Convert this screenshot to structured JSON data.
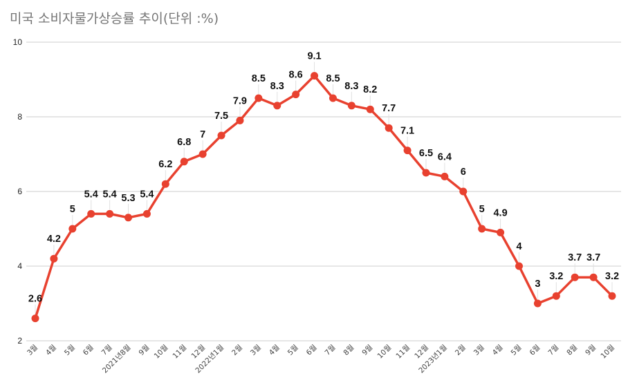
{
  "title": "미국 소비자물가상승률 추이(단위 :%)",
  "colors": {
    "line": "#E8412F",
    "grid": "#CCCCCC",
    "title": "#757575"
  },
  "chart_data": {
    "type": "line",
    "title": "미국 소비자물가상승률 추이(단위 :%)",
    "xlabel": "",
    "ylabel": "",
    "ylim": [
      2,
      10
    ],
    "yticks": [
      2,
      4,
      6,
      8,
      10
    ],
    "grid": true,
    "legend": null,
    "categories": [
      "3월",
      "4월",
      "5월",
      "6월",
      "7월",
      "2021년8월",
      "9월",
      "10월",
      "11월",
      "12월",
      "2022년1월",
      "2월",
      "3월",
      "4월",
      "5월",
      "6월",
      "7월",
      "8월",
      "9월",
      "10월",
      "11월",
      "12월",
      "2023년1월",
      "2월",
      "3월",
      "4월",
      "5월",
      "6월",
      "7월",
      "8월",
      "9월",
      "10월"
    ],
    "series": [
      {
        "name": "미국 소비자물가상승률",
        "values": [
          2.6,
          4.2,
          5,
          5.4,
          5.4,
          5.3,
          5.4,
          6.2,
          6.8,
          7,
          7.5,
          7.9,
          8.5,
          8.3,
          8.6,
          9.1,
          8.5,
          8.3,
          8.2,
          7.7,
          7.1,
          6.5,
          6.4,
          6,
          5,
          4.9,
          4,
          3,
          3.2,
          3.7,
          3.7,
          3.2
        ]
      }
    ]
  }
}
